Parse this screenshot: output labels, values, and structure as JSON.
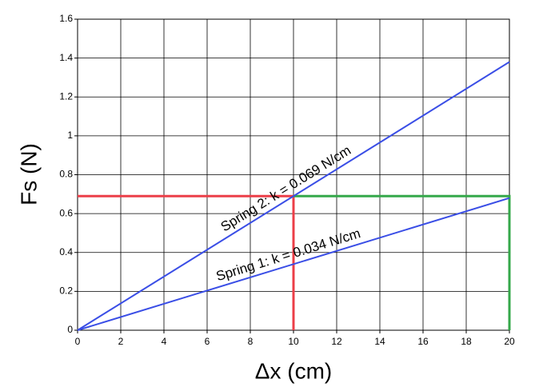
{
  "chart_data": {
    "type": "line",
    "xlabel": "Δx (cm)",
    "ylabel": "Fs (N)",
    "xlim": [
      0,
      20
    ],
    "ylim": [
      0,
      1.6
    ],
    "xticks": [
      0,
      2,
      4,
      6,
      8,
      10,
      12,
      14,
      16,
      18,
      20
    ],
    "yticks": [
      0,
      0.2,
      0.4,
      0.6,
      0.8,
      1,
      1.2,
      1.4,
      1.6
    ],
    "grid": true,
    "series": [
      {
        "color": "#3a4ee6",
        "x": [
          0,
          20
        ],
        "values": [
          0,
          1.38
        ]
      },
      {
        "color": "#3a4ee6",
        "x": [
          0,
          20
        ],
        "values": [
          0,
          0.68
        ]
      }
    ],
    "guides": [
      {
        "color": "#ec3f48",
        "x": [
          0,
          10,
          10
        ],
        "values": [
          0.69,
          0.69,
          0
        ]
      },
      {
        "color": "#35a84a",
        "x": [
          10,
          20,
          20
        ],
        "values": [
          0.69,
          0.69,
          0
        ]
      }
    ],
    "annotations": [
      "Spring 2: k = 0.069 N/cm",
      "Spring 1: k = 0.034 N/cm"
    ]
  }
}
